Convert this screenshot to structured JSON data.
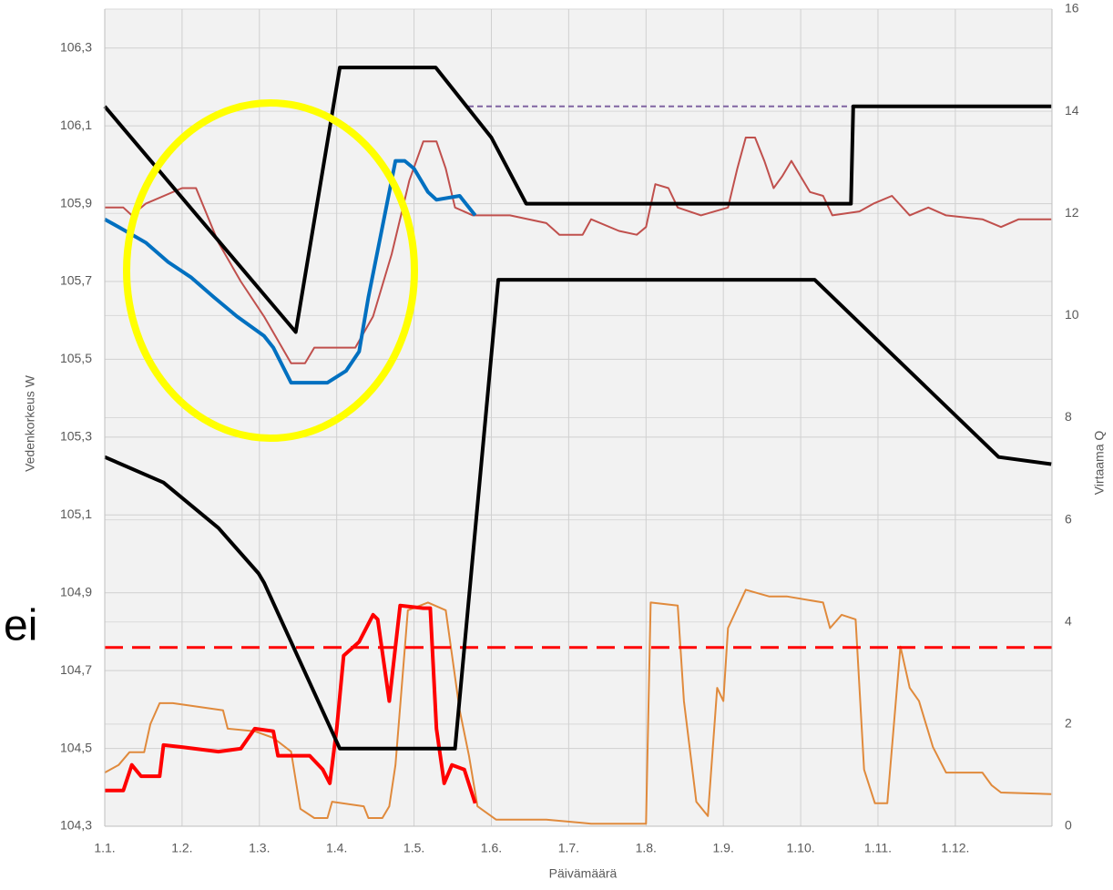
{
  "chart_data": {
    "type": "line",
    "annotation": "ei",
    "xlabel": "Päivämäärä",
    "ylabel": "Vedenkorkeus W",
    "y2label": "Virtaama Q",
    "xlim": [
      0,
      12.25
    ],
    "xticks": [
      {
        "value": 0,
        "label": "1.1."
      },
      {
        "value": 1,
        "label": "1.2."
      },
      {
        "value": 2,
        "label": "1.3."
      },
      {
        "value": 3,
        "label": "1.4."
      },
      {
        "value": 4,
        "label": "1.5."
      },
      {
        "value": 5,
        "label": "1.6."
      },
      {
        "value": 6,
        "label": "1.7."
      },
      {
        "value": 7,
        "label": "1.8."
      },
      {
        "value": 8,
        "label": "1.9."
      },
      {
        "value": 9,
        "label": "1.10."
      },
      {
        "value": 10,
        "label": "1.11."
      },
      {
        "value": 11,
        "label": "1.12."
      }
    ],
    "ylim": [
      104.3,
      106.4
    ],
    "yticks": [
      {
        "value": 104.3,
        "label": "104,3"
      },
      {
        "value": 104.5,
        "label": "104,5"
      },
      {
        "value": 104.7,
        "label": "104,7"
      },
      {
        "value": 104.9,
        "label": "104,9"
      },
      {
        "value": 105.1,
        "label": "105,1"
      },
      {
        "value": 105.3,
        "label": "105,3"
      },
      {
        "value": 105.5,
        "label": "105,5"
      },
      {
        "value": 105.7,
        "label": "105,7"
      },
      {
        "value": 105.9,
        "label": "105,9"
      },
      {
        "value": 106.1,
        "label": "106,1"
      },
      {
        "value": 106.3,
        "label": "106,3"
      }
    ],
    "y2lim": [
      0,
      16
    ],
    "y2ticks": [
      0,
      2,
      4,
      6,
      8,
      10,
      12,
      14,
      16
    ],
    "grid": true,
    "series": [
      {
        "color": "#c0504d",
        "width": 2,
        "x": [
          0,
          0.24,
          0.35,
          0.53,
          1.0,
          1.18,
          1.47,
          1.76,
          2.06,
          2.41,
          2.59,
          2.71,
          3.24,
          3.47,
          3.71,
          3.94,
          4.12,
          4.29,
          4.41,
          4.53,
          4.76,
          5.24,
          5.71,
          5.88,
          6.18,
          6.29,
          6.65,
          6.88,
          7.0,
          7.12,
          7.29,
          7.41,
          7.71,
          8.06,
          8.18,
          8.29,
          8.41,
          8.53,
          8.65,
          8.76,
          8.88,
          9.0,
          9.12,
          9.29,
          9.41,
          9.76,
          9.94,
          10.18,
          10.41,
          10.65,
          10.88,
          11.35,
          11.59,
          11.82,
          12.24
        ],
        "values": [
          105.89,
          105.89,
          105.87,
          105.9,
          105.94,
          105.94,
          105.8,
          105.7,
          105.61,
          105.49,
          105.49,
          105.53,
          105.53,
          105.61,
          105.77,
          105.96,
          106.06,
          106.06,
          105.99,
          105.89,
          105.87,
          105.87,
          105.85,
          105.82,
          105.82,
          105.86,
          105.83,
          105.82,
          105.84,
          105.95,
          105.94,
          105.89,
          105.87,
          105.89,
          105.99,
          106.07,
          106.07,
          106.01,
          105.94,
          105.97,
          106.01,
          105.97,
          105.93,
          105.92,
          105.87,
          105.88,
          105.9,
          105.92,
          105.87,
          105.89,
          105.87,
          105.86,
          105.84,
          105.86,
          105.86
        ]
      },
      {
        "color": "#0070c0",
        "width": 4,
        "x": [
          0,
          0.18,
          0.53,
          0.82,
          1.12,
          1.41,
          1.71,
          2.06,
          2.18,
          2.41,
          2.88,
          3.12,
          3.29,
          3.41,
          3.59,
          3.76,
          3.88,
          4.0,
          4.18,
          4.29,
          4.59,
          4.79
        ],
        "values": [
          105.86,
          105.84,
          105.8,
          105.75,
          105.71,
          105.66,
          105.61,
          105.56,
          105.53,
          105.44,
          105.44,
          105.47,
          105.52,
          105.66,
          105.84,
          106.01,
          106.01,
          105.99,
          105.93,
          105.91,
          105.92,
          105.87
        ]
      },
      {
        "color": "#8064a2",
        "width": 2,
        "dashed": true,
        "x": [
          4.7,
          9.65
        ],
        "values": [
          106.15,
          106.15
        ]
      },
      {
        "color": "#000000",
        "width": 4,
        "x": [
          0,
          2.47,
          3.04,
          4.28,
          5.0,
          5.45,
          9.65,
          9.68,
          12.24
        ],
        "values": [
          106.15,
          105.57,
          106.25,
          106.25,
          106.07,
          105.9,
          105.9,
          106.15,
          106.15
        ]
      },
      {
        "color": "#e08a3c",
        "width": 2,
        "axis": "y2",
        "x": [
          0,
          0.18,
          0.32,
          0.51,
          0.59,
          0.71,
          0.88,
          1.53,
          1.59,
          1.94,
          2.18,
          2.41,
          2.53,
          2.71,
          2.88,
          2.94,
          3.35,
          3.41,
          3.59,
          3.68,
          3.76,
          3.92,
          4.18,
          4.41,
          4.59,
          4.71,
          4.82,
          5.06,
          5.71,
          6.29,
          7.0,
          7.06,
          7.41,
          7.49,
          7.65,
          7.8,
          7.92,
          8.0,
          8.06,
          8.29,
          8.59,
          8.82,
          9.29,
          9.38,
          9.53,
          9.71,
          9.82,
          9.96,
          10.12,
          10.29,
          10.41,
          10.53,
          10.71,
          10.88,
          11.35,
          11.47,
          11.59,
          12.24
        ],
        "values": [
          1.05,
          1.2,
          1.45,
          1.45,
          2.0,
          2.41,
          2.41,
          2.27,
          1.91,
          1.86,
          1.73,
          1.46,
          0.34,
          0.16,
          0.16,
          0.48,
          0.39,
          0.16,
          0.16,
          0.39,
          1.2,
          4.23,
          4.38,
          4.23,
          2.27,
          1.38,
          0.39,
          0.13,
          0.13,
          0.05,
          0.05,
          4.38,
          4.32,
          2.45,
          0.48,
          0.2,
          2.71,
          2.45,
          3.88,
          4.63,
          4.5,
          4.5,
          4.38,
          3.88,
          4.14,
          4.05,
          1.11,
          0.45,
          0.45,
          3.52,
          2.71,
          2.45,
          1.55,
          1.05,
          1.05,
          0.8,
          0.66,
          0.63
        ]
      },
      {
        "color": "#ff0000",
        "width": 4,
        "axis": "y2",
        "x": [
          0,
          0.24,
          0.35,
          0.47,
          0.71,
          0.76,
          1.0,
          1.47,
          1.76,
          1.94,
          2.18,
          2.24,
          2.65,
          2.82,
          2.91,
          3.0,
          3.09,
          3.29,
          3.47,
          3.53,
          3.68,
          3.82,
          4.12,
          4.21,
          4.29,
          4.39,
          4.49,
          4.65,
          4.79
        ],
        "values": [
          0.7,
          0.7,
          1.2,
          0.98,
          0.98,
          1.59,
          1.55,
          1.46,
          1.52,
          1.91,
          1.86,
          1.38,
          1.38,
          1.11,
          0.84,
          1.91,
          3.34,
          3.61,
          4.14,
          4.05,
          2.45,
          4.32,
          4.27,
          4.27,
          1.91,
          0.84,
          1.2,
          1.11,
          0.45
        ]
      },
      {
        "color": "#ff0000",
        "width": 3,
        "dashed": true,
        "axis": "y2",
        "x": [
          0,
          12.25
        ],
        "values": [
          3.5,
          3.5
        ]
      },
      {
        "color": "#000000",
        "width": 4,
        "axis": "y2",
        "x": [
          0,
          0.76,
          1.47,
          1.99,
          2.06,
          3.04,
          4.53,
          5.09,
          9.18,
          11.56,
          12.24
        ],
        "values": [
          7.23,
          6.73,
          5.84,
          4.95,
          4.77,
          1.52,
          1.52,
          10.7,
          10.7,
          7.23,
          7.09
        ]
      }
    ]
  }
}
